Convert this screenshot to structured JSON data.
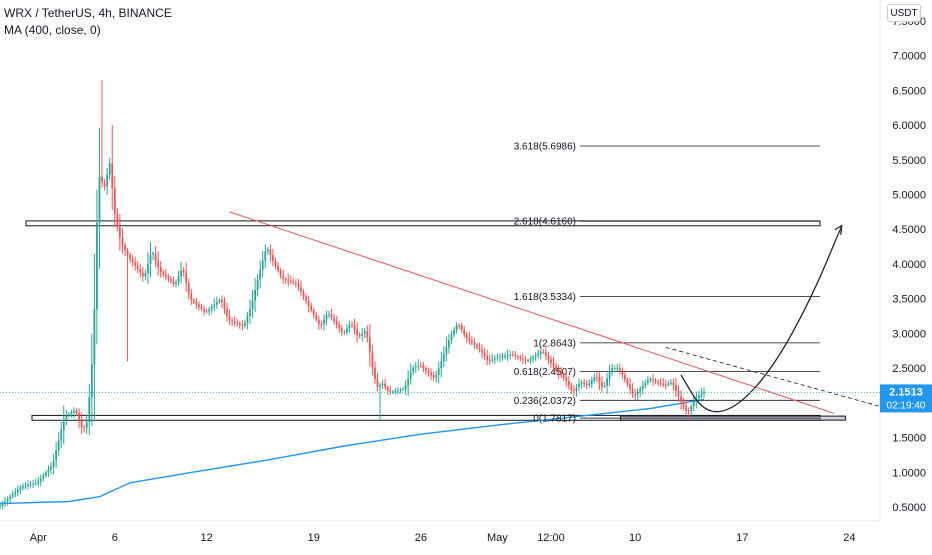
{
  "header": {
    "symbol": "WRX / TetherUS, 4h, BINANCE",
    "indicator": "MA (400, close, 0)",
    "currency_button": "USDT"
  },
  "price_tag": {
    "value": "2.1513",
    "countdown": "02:19:40"
  },
  "colors": {
    "up": "#26a69a",
    "down": "#ef5350",
    "ma": "#2196f3",
    "trendline": "#ef5350",
    "fib": "#131722",
    "price_tag": "#2196f3"
  },
  "chart_data": {
    "type": "candlestick",
    "x_axis": {
      "range_days": [
        0,
        55
      ],
      "tick_labels": [
        "Apr",
        "6",
        "12",
        "19",
        "26",
        "May",
        "12:00",
        "10",
        "17",
        "24"
      ],
      "tick_days": [
        0,
        5,
        11,
        18,
        25,
        30,
        33.5,
        39,
        46,
        53
      ]
    },
    "y_axis": {
      "range": [
        0.3,
        7.8
      ],
      "tick_labels": [
        "7.5000",
        "7.0000",
        "6.5000",
        "6.0000",
        "5.5000",
        "5.0000",
        "4.5000",
        "4.0000",
        "3.5000",
        "3.0000",
        "2.5000",
        "2.0000",
        "1.5000",
        "1.0000",
        "0.5000"
      ],
      "tick_values": [
        7.5,
        7.0,
        6.5,
        6.0,
        5.5,
        5.0,
        4.5,
        4.0,
        3.5,
        3.0,
        2.5,
        2.0,
        1.5,
        1.0,
        0.5
      ]
    },
    "price_path": [
      [
        -2.5,
        0.5
      ],
      [
        -1,
        0.8
      ],
      [
        0,
        0.85
      ],
      [
        1,
        1.1
      ],
      [
        1.8,
        1.8
      ],
      [
        2.5,
        1.9
      ],
      [
        3,
        1.6
      ],
      [
        3.3,
        1.75
      ],
      [
        3.6,
        2.6
      ],
      [
        3.8,
        3.6
      ],
      [
        4,
        5.3
      ],
      [
        4.4,
        5.1
      ],
      [
        4.8,
        5.5
      ],
      [
        5,
        4.8
      ],
      [
        5.5,
        4.3
      ],
      [
        6,
        4.1
      ],
      [
        7,
        3.8
      ],
      [
        7.5,
        4.2
      ],
      [
        8,
        3.9
      ],
      [
        9,
        3.7
      ],
      [
        9.5,
        3.95
      ],
      [
        10,
        3.5
      ],
      [
        11,
        3.3
      ],
      [
        12,
        3.5
      ],
      [
        12.5,
        3.2
      ],
      [
        13.5,
        3.1
      ],
      [
        14,
        3.4
      ],
      [
        14.5,
        3.85
      ],
      [
        15,
        4.25
      ],
      [
        15.4,
        4.05
      ],
      [
        16,
        3.8
      ],
      [
        17,
        3.7
      ],
      [
        18,
        3.3
      ],
      [
        18.5,
        3.1
      ],
      [
        19,
        3.3
      ],
      [
        20,
        3.0
      ],
      [
        20.5,
        3.15
      ],
      [
        21,
        2.95
      ],
      [
        21.5,
        3.05
      ],
      [
        22,
        2.4
      ],
      [
        22.3,
        2.2
      ],
      [
        22.5,
        2.3
      ],
      [
        23,
        2.15
      ],
      [
        24,
        2.2
      ],
      [
        24.5,
        2.5
      ],
      [
        25,
        2.55
      ],
      [
        26,
        2.35
      ],
      [
        26.5,
        2.65
      ],
      [
        27,
        2.95
      ],
      [
        27.5,
        3.15
      ],
      [
        28,
        2.95
      ],
      [
        29,
        2.75
      ],
      [
        29.5,
        2.6
      ],
      [
        30,
        2.65
      ],
      [
        31,
        2.7
      ],
      [
        32,
        2.6
      ],
      [
        33,
        2.75
      ],
      [
        33.5,
        2.6
      ],
      [
        34,
        2.45
      ],
      [
        34.5,
        2.35
      ],
      [
        35,
        2.15
      ],
      [
        35.5,
        2.3
      ],
      [
        36,
        2.25
      ],
      [
        36.5,
        2.4
      ],
      [
        37,
        2.2
      ],
      [
        37.5,
        2.5
      ],
      [
        38,
        2.5
      ],
      [
        38.5,
        2.3
      ],
      [
        39,
        2.1
      ],
      [
        40,
        2.35
      ],
      [
        41,
        2.25
      ],
      [
        41.5,
        2.3
      ],
      [
        42,
        2.05
      ],
      [
        42.5,
        1.85
      ],
      [
        43,
        2.05
      ],
      [
        43.5,
        2.15
      ]
    ],
    "candle_spans": [
      [
        0,
        3.5
      ],
      [
        4,
        20
      ],
      [
        21,
        22
      ],
      [
        23,
        42
      ],
      [
        42.5,
        43.5
      ]
    ],
    "moving_average": [
      [
        -2.5,
        0.55
      ],
      [
        2,
        0.58
      ],
      [
        4,
        0.65
      ],
      [
        6,
        0.85
      ],
      [
        10,
        1.0
      ],
      [
        15,
        1.18
      ],
      [
        20,
        1.38
      ],
      [
        25,
        1.55
      ],
      [
        30,
        1.68
      ],
      [
        35,
        1.8
      ],
      [
        40,
        1.92
      ],
      [
        43.5,
        2.05
      ]
    ],
    "fibonacci": {
      "levels": [
        {
          "ratio": 0,
          "price": 1.7817,
          "label": "0(1.7817)"
        },
        {
          "ratio": 0.236,
          "price": 2.0372,
          "label": "0.236(2.0372)"
        },
        {
          "ratio": 0.618,
          "price": 2.4507,
          "label": "0.618(2.4507)"
        },
        {
          "ratio": 1,
          "price": 2.8643,
          "label": "1(2.8643)"
        },
        {
          "ratio": 1.618,
          "price": 3.5334,
          "label": "1.618(3.5334)"
        },
        {
          "ratio": 2.618,
          "price": 4.616,
          "label": "2.618(4.6160)"
        },
        {
          "ratio": 3.618,
          "price": 5.6986,
          "label": "3.618(5.6986)"
        }
      ],
      "day_start": 40,
      "day_end": 55
    },
    "zones": [
      {
        "name": "support",
        "day_start": -2,
        "day_end": 55,
        "price_low": 1.75,
        "price_high": 1.82
      },
      {
        "name": "resistance",
        "day_start": -2,
        "day_end": 55,
        "price_low": 4.55,
        "price_high": 4.62
      },
      {
        "name": "base-box",
        "day_start": 40,
        "day_end": 49,
        "price_low": 1.76,
        "price_high": 1.81
      }
    ],
    "trendline_red": {
      "start": [
        12.5,
        4.75
      ],
      "end": [
        52,
        1.85
      ]
    },
    "trendline_dashed": {
      "start": [
        41,
        2.8
      ],
      "end": [
        55,
        1.95
      ]
    },
    "projection_arrow": [
      [
        42,
        2.4
      ],
      [
        43.5,
        1.85
      ],
      [
        45.5,
        1.9
      ],
      [
        48,
        2.5
      ],
      [
        50.5,
        3.5
      ],
      [
        52.5,
        4.55
      ]
    ]
  }
}
